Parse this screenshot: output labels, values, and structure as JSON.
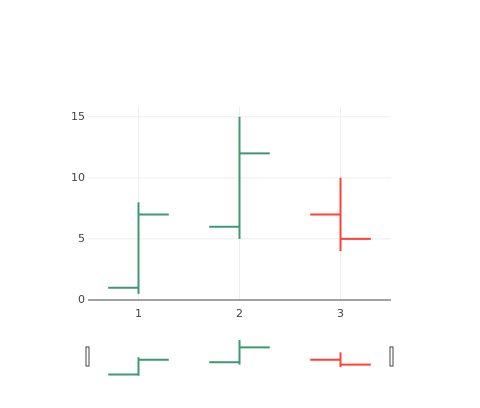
{
  "chart_data": {
    "type": "ohlc",
    "x": [
      1,
      2,
      3
    ],
    "open": [
      1,
      6,
      7
    ],
    "high": [
      8,
      15,
      10
    ],
    "low": [
      0.5,
      5,
      4
    ],
    "close": [
      7,
      12,
      5
    ],
    "increasing_color": "#3d9970",
    "decreasing_color": "#ff4136",
    "xlim": [
      0.5,
      3.5
    ],
    "ylim": [
      0,
      15.8
    ],
    "xticks": [
      1,
      2,
      3
    ],
    "yticks": [
      0,
      5,
      10,
      15
    ],
    "grid": true,
    "rangeslider": true
  }
}
